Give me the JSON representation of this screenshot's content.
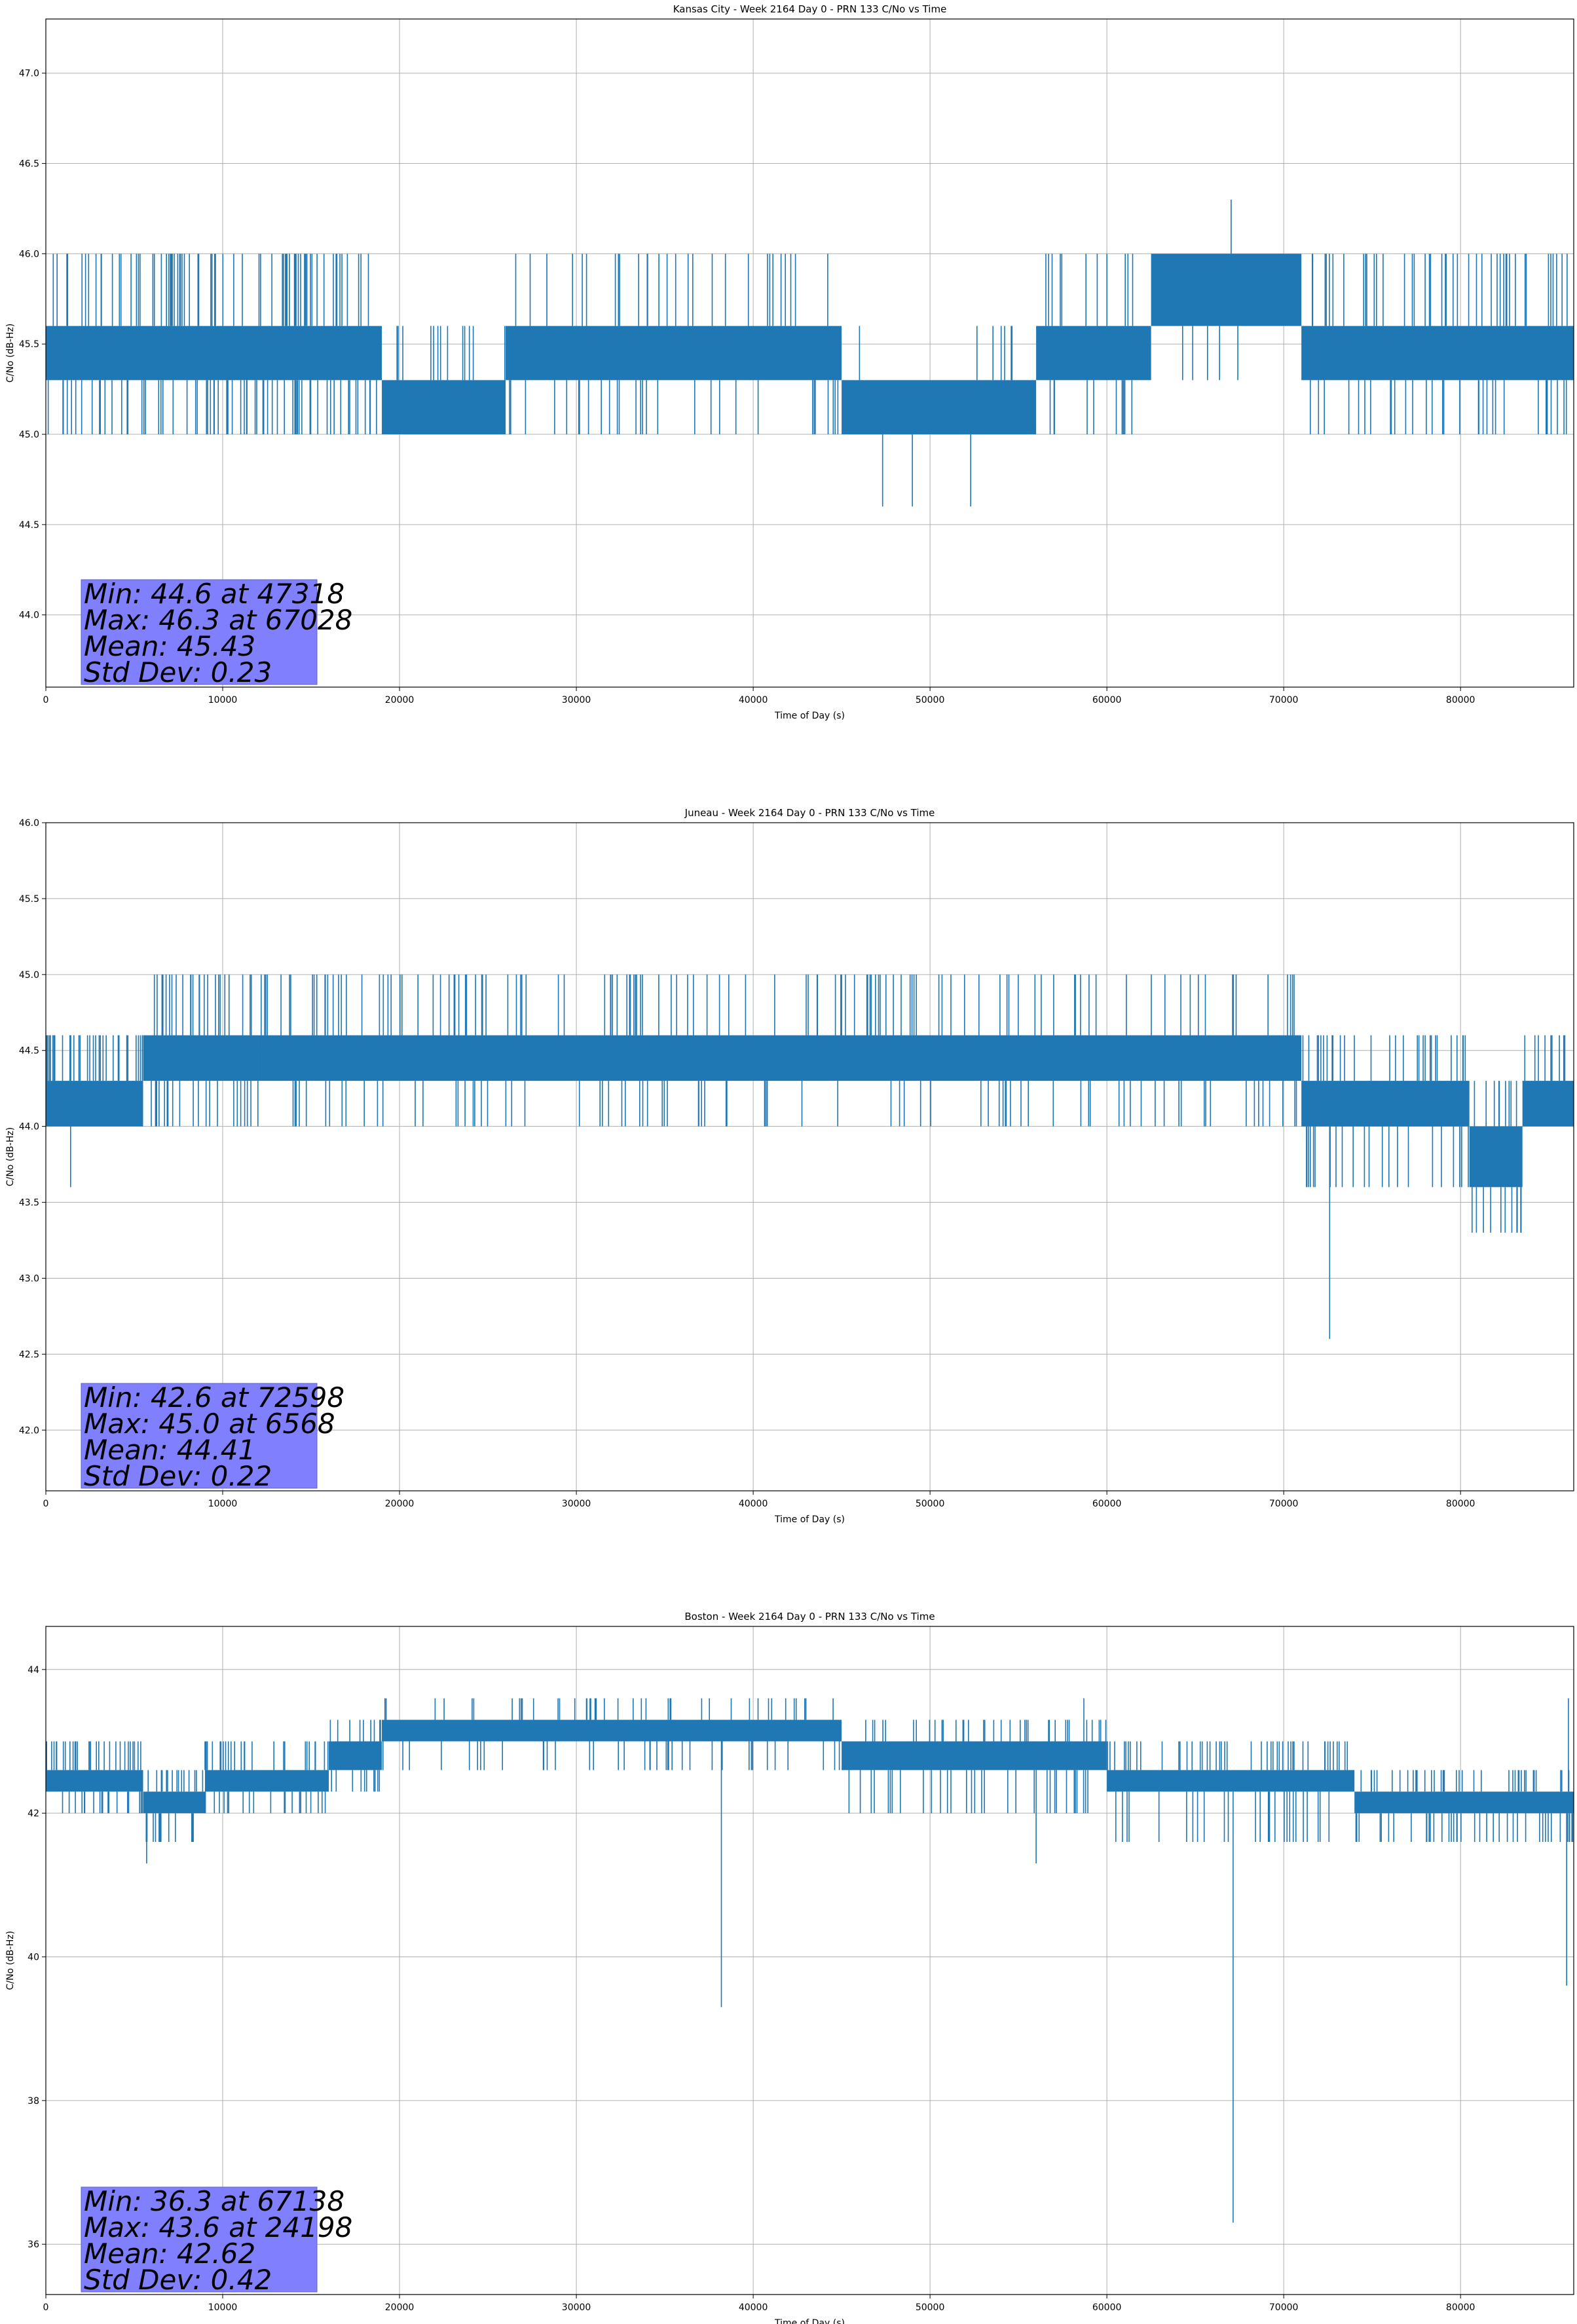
{
  "chart_data": [
    {
      "type": "line",
      "title": "Kansas City - Week 2164 Day 0 - PRN 133 C/No vs Time",
      "xlabel": "Time of Day (s)",
      "ylabel": "C/No (dB-Hz)",
      "xlim": [
        0,
        86400
      ],
      "ylim": [
        43.6,
        47.3
      ],
      "xticks": [
        0,
        10000,
        20000,
        30000,
        40000,
        50000,
        60000,
        70000,
        80000
      ],
      "xtick_labels": [
        "0",
        "10000",
        "20000",
        "30000",
        "40000",
        "50000",
        "60000",
        "70000",
        "80000"
      ],
      "yticks": [
        44.0,
        44.5,
        45.0,
        45.5,
        46.0,
        46.5,
        47.0
      ],
      "ytick_labels": [
        "44.0",
        "44.5",
        "45.0",
        "45.5",
        "46.0",
        "46.5",
        "47.0"
      ],
      "grid": true,
      "color": "#1f77b4",
      "series": [
        {
          "segments": [
            {
              "x0": 0,
              "x1": 19000,
              "low": 45.3,
              "high": 45.6,
              "spike_low": 45.0,
              "spike_high": 46.0,
              "density": 0.18
            },
            {
              "x0": 19000,
              "x1": 26000,
              "low": 45.0,
              "high": 45.3,
              "spike_low": 45.0,
              "spike_high": 45.6,
              "density": 0.08
            },
            {
              "x0": 26000,
              "x1": 45000,
              "low": 45.3,
              "high": 45.6,
              "spike_low": 45.0,
              "spike_high": 46.0,
              "density": 0.06
            },
            {
              "x0": 45000,
              "x1": 56000,
              "low": 45.0,
              "high": 45.3,
              "spike_low": 45.0,
              "spike_high": 45.6,
              "density": 0.05
            },
            {
              "x0": 56000,
              "x1": 62500,
              "low": 45.3,
              "high": 45.6,
              "spike_low": 45.0,
              "spike_high": 46.0,
              "density": 0.06
            },
            {
              "x0": 62500,
              "x1": 71000,
              "low": 45.6,
              "high": 46.0,
              "spike_low": 45.3,
              "spike_high": 46.0,
              "density": 0.05
            },
            {
              "x0": 71000,
              "x1": 86400,
              "low": 45.3,
              "high": 45.6,
              "spike_low": 45.0,
              "spike_high": 46.0,
              "density": 0.1
            }
          ],
          "extremes": [
            {
              "x": 47318,
              "y": 44.6
            },
            {
              "x": 49000,
              "y": 44.6
            },
            {
              "x": 52300,
              "y": 44.6
            },
            {
              "x": 67028,
              "y": 46.3
            }
          ]
        }
      ],
      "stats": [
        "Min: 44.6 at 47318",
        "Max: 46.3 at 67028",
        "Mean: 45.43",
        "Std Dev: 0.23"
      ]
    },
    {
      "type": "line",
      "title": "Juneau - Week 2164 Day 0 - PRN 133 C/No vs Time",
      "xlabel": "Time of Day (s)",
      "ylabel": "C/No (dB-Hz)",
      "xlim": [
        0,
        86400
      ],
      "ylim": [
        41.6,
        46.0
      ],
      "xticks": [
        0,
        10000,
        20000,
        30000,
        40000,
        50000,
        60000,
        70000,
        80000
      ],
      "xtick_labels": [
        "0",
        "10000",
        "20000",
        "30000",
        "40000",
        "50000",
        "60000",
        "70000",
        "80000"
      ],
      "yticks": [
        42.0,
        42.5,
        43.0,
        43.5,
        44.0,
        44.5,
        45.0,
        45.5,
        46.0
      ],
      "ytick_labels": [
        "42.0",
        "42.5",
        "43.0",
        "43.5",
        "44.0",
        "44.5",
        "45.0",
        "45.5",
        "46.0"
      ],
      "grid": true,
      "color": "#1f77b4",
      "series": [
        {
          "segments": [
            {
              "x0": 0,
              "x1": 5500,
              "low": 44.0,
              "high": 44.3,
              "spike_low": 44.0,
              "spike_high": 44.6,
              "density": 0.2
            },
            {
              "x0": 5500,
              "x1": 12000,
              "low": 44.3,
              "high": 44.6,
              "spike_low": 44.0,
              "spike_high": 45.0,
              "density": 0.12
            },
            {
              "x0": 12000,
              "x1": 71000,
              "low": 44.3,
              "high": 44.6,
              "spike_low": 44.0,
              "spike_high": 45.0,
              "density": 0.07
            },
            {
              "x0": 71000,
              "x1": 80500,
              "low": 44.0,
              "high": 44.3,
              "spike_low": 43.6,
              "spike_high": 44.6,
              "density": 0.12
            },
            {
              "x0": 80500,
              "x1": 83500,
              "low": 43.6,
              "high": 44.0,
              "spike_low": 43.3,
              "spike_high": 44.3,
              "density": 0.1
            },
            {
              "x0": 83500,
              "x1": 86400,
              "low": 44.0,
              "high": 44.3,
              "spike_low": 44.0,
              "spike_high": 44.6,
              "density": 0.12
            }
          ],
          "extremes": [
            {
              "x": 1400,
              "y": 43.6
            },
            {
              "x": 72598,
              "y": 42.6
            },
            {
              "x": 81700,
              "y": 43.3
            },
            {
              "x": 82900,
              "y": 43.3
            },
            {
              "x": 6568,
              "y": 45.0
            }
          ]
        }
      ],
      "stats": [
        "Min: 42.6 at 72598",
        "Max: 45.0 at 6568",
        "Mean: 44.41",
        "Std Dev: 0.22"
      ]
    },
    {
      "type": "line",
      "title": "Boston - Week 2164 Day 0 - PRN 133 C/No vs Time",
      "xlabel": "Time of Day (s)",
      "ylabel": "C/No (dB-Hz)",
      "xlim": [
        0,
        86400
      ],
      "ylim": [
        35.3,
        44.6
      ],
      "xticks": [
        0,
        10000,
        20000,
        30000,
        40000,
        50000,
        60000,
        70000,
        80000
      ],
      "xtick_labels": [
        "0",
        "10000",
        "20000",
        "30000",
        "40000",
        "50000",
        "60000",
        "70000",
        "80000"
      ],
      "yticks": [
        36,
        38,
        40,
        42,
        44
      ],
      "ytick_labels": [
        "36",
        "38",
        "40",
        "42",
        "44"
      ],
      "grid": true,
      "color": "#1f77b4",
      "series": [
        {
          "segments": [
            {
              "x0": 0,
              "x1": 5500,
              "low": 42.3,
              "high": 42.6,
              "spike_low": 42.0,
              "spike_high": 43.0,
              "density": 0.18
            },
            {
              "x0": 5500,
              "x1": 9000,
              "low": 42.0,
              "high": 42.3,
              "spike_low": 41.6,
              "spike_high": 42.6,
              "density": 0.18
            },
            {
              "x0": 9000,
              "x1": 16000,
              "low": 42.3,
              "high": 42.6,
              "spike_low": 42.0,
              "spike_high": 43.0,
              "density": 0.12
            },
            {
              "x0": 16000,
              "x1": 19000,
              "low": 42.6,
              "high": 43.0,
              "spike_low": 42.3,
              "spike_high": 43.3,
              "density": 0.12
            },
            {
              "x0": 19000,
              "x1": 45000,
              "low": 43.0,
              "high": 43.3,
              "spike_low": 42.6,
              "spike_high": 43.6,
              "density": 0.07
            },
            {
              "x0": 45000,
              "x1": 60000,
              "low": 42.6,
              "high": 43.0,
              "spike_low": 42.0,
              "spike_high": 43.3,
              "density": 0.09
            },
            {
              "x0": 60000,
              "x1": 74000,
              "low": 42.3,
              "high": 42.6,
              "spike_low": 41.6,
              "spike_high": 43.0,
              "density": 0.12
            },
            {
              "x0": 74000,
              "x1": 86400,
              "low": 42.0,
              "high": 42.3,
              "spike_low": 41.6,
              "spike_high": 42.6,
              "density": 0.14
            }
          ],
          "extremes": [
            {
              "x": 38200,
              "y": 39.3
            },
            {
              "x": 5700,
              "y": 41.3
            },
            {
              "x": 56000,
              "y": 41.3
            },
            {
              "x": 67138,
              "y": 36.3
            },
            {
              "x": 86000,
              "y": 39.6
            },
            {
              "x": 24198,
              "y": 43.6
            },
            {
              "x": 58700,
              "y": 43.6
            },
            {
              "x": 86100,
              "y": 43.6
            }
          ]
        }
      ],
      "stats": [
        "Min: 36.3 at 67138",
        "Max: 43.6 at 24198",
        "Mean: 42.62",
        "Std Dev: 0.42"
      ]
    }
  ]
}
